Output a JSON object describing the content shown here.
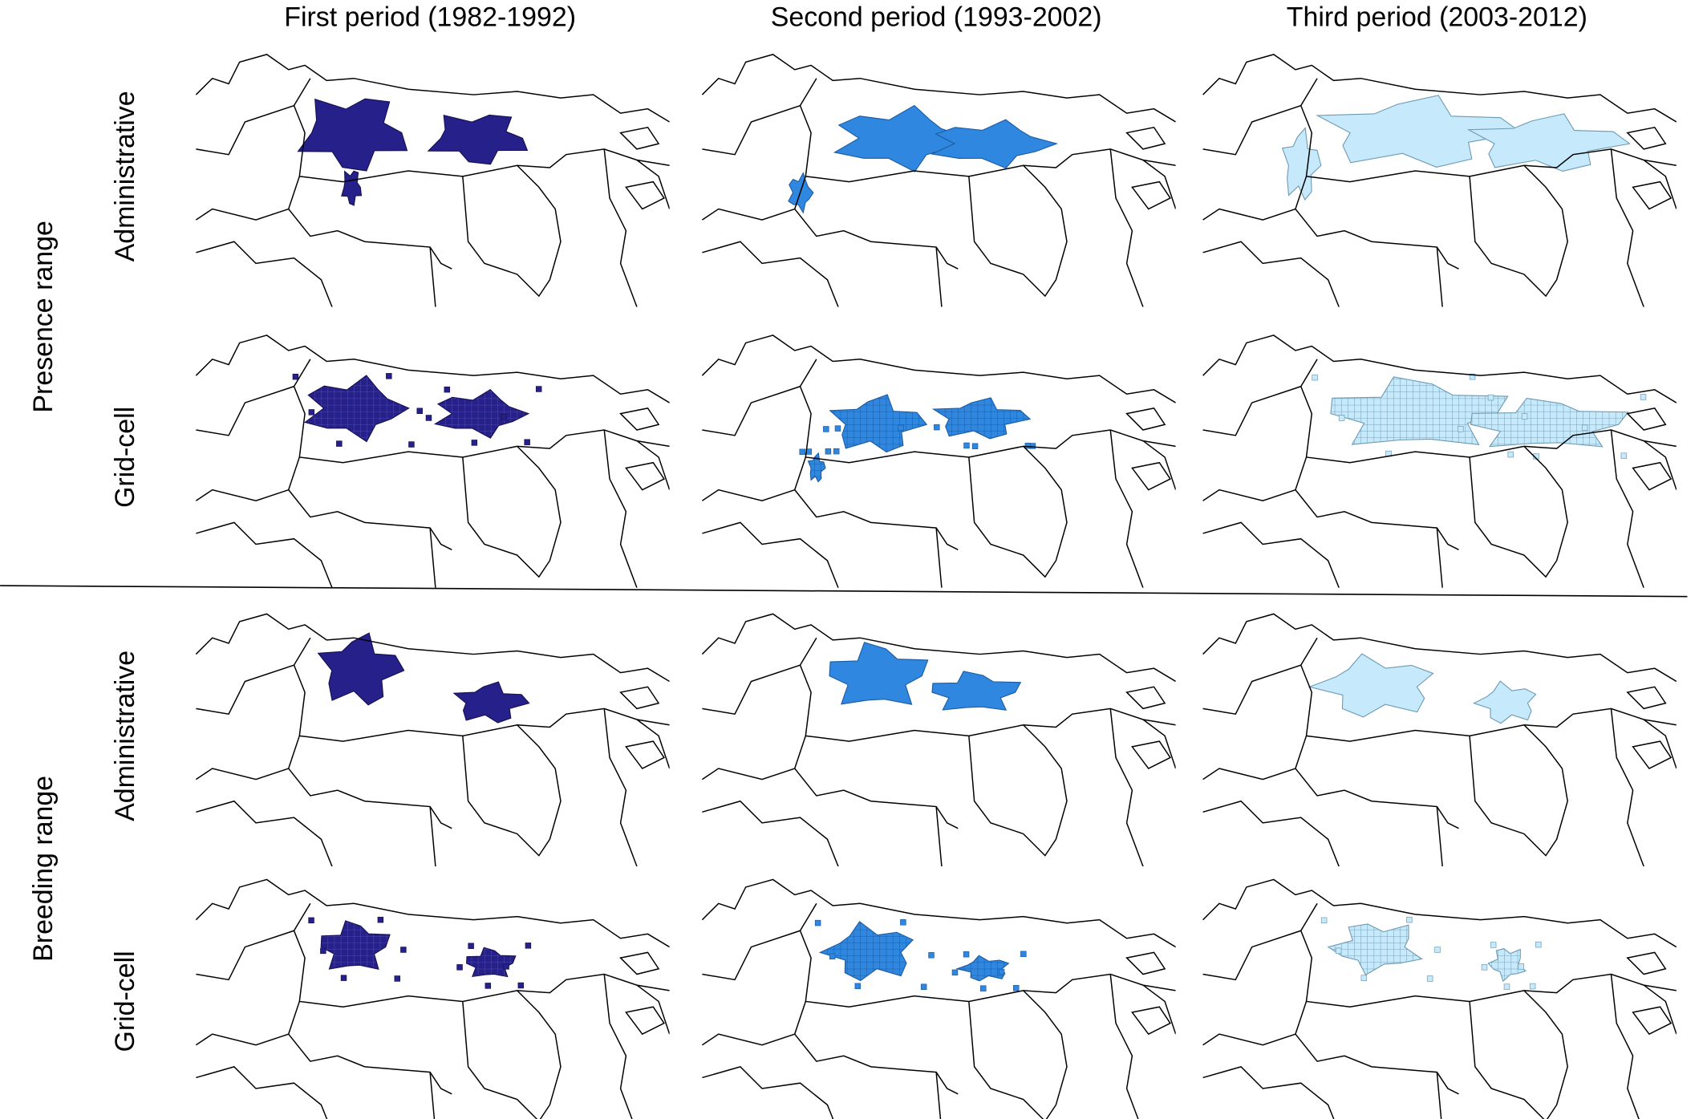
{
  "column_titles": [
    "First period (1982-1992)",
    "Second period (1993-2002)",
    "Third period (2003-2012)"
  ],
  "groups": [
    {
      "label": "Presence range",
      "rows": [
        "Administrative",
        "Grid-cell"
      ]
    },
    {
      "label": "Breeding range",
      "rows": [
        "Administrative",
        "Grid-cell"
      ]
    }
  ]
}
